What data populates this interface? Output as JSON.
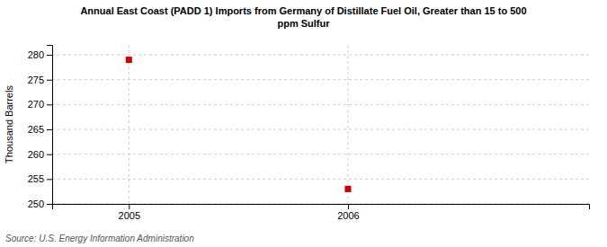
{
  "chart_data": {
    "type": "scatter",
    "title": "Annual East Coast (PADD 1) Imports from Germany of Distillate Fuel Oil, Greater than 15 to 500\nppm Sulfur",
    "y_label": "Thousand Barrels",
    "annotations": [
      "Source: U.S. Energy Information Administration"
    ],
    "x": [
      2005,
      2006
    ],
    "values": [
      279,
      253
    ],
    "color": "#cc0000",
    "marker": "square",
    "xlim": [
      2004.65,
      2007.1
    ],
    "xticks": [
      2005,
      2006
    ],
    "ylim": [
      250,
      282
    ],
    "yticks": [
      250,
      255,
      260,
      265,
      270,
      275,
      280
    ],
    "grid": true
  }
}
